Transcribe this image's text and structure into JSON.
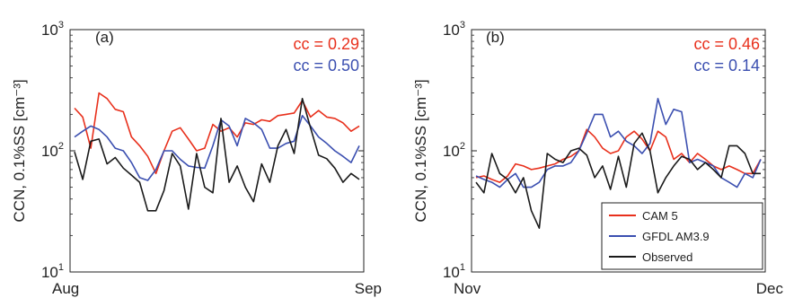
{
  "chart_data": [
    {
      "type": "line",
      "panel_label": "(a)",
      "ylabel": "CCN, 0.1%SS [cm⁻³]",
      "yscale": "log",
      "ylim": [
        10,
        1000
      ],
      "x_tick_labels": [
        "Aug",
        "Sep"
      ],
      "annotations": [
        "cc = 0.29",
        "cc = 0.50"
      ],
      "annotation_colors": [
        "#e8301c",
        "#3b4fb0"
      ],
      "series": [
        {
          "name": "CAM 5",
          "color": "#e8301c",
          "values": [
            225,
            190,
            105,
            300,
            270,
            220,
            210,
            130,
            110,
            90,
            65,
            100,
            145,
            155,
            125,
            100,
            105,
            165,
            145,
            155,
            130,
            170,
            165,
            180,
            175,
            195,
            200,
            205,
            260,
            190,
            215,
            190,
            185,
            170,
            145,
            160
          ]
        },
        {
          "name": "GFDL AM3.9",
          "color": "#3b4fb0",
          "values": [
            130,
            145,
            160,
            150,
            130,
            105,
            100,
            80,
            60,
            57,
            70,
            100,
            100,
            85,
            75,
            73,
            72,
            110,
            180,
            160,
            110,
            185,
            170,
            150,
            105,
            105,
            115,
            120,
            195,
            160,
            130,
            115,
            100,
            90,
            80,
            110
          ]
        },
        {
          "name": "Observed",
          "color": "#1a1a1a",
          "values": [
            98,
            58,
            120,
            125,
            78,
            88,
            72,
            63,
            55,
            32,
            32,
            47,
            95,
            75,
            33,
            95,
            50,
            45,
            185,
            55,
            75,
            50,
            38,
            78,
            55,
            110,
            150,
            95,
            270,
            155,
            92,
            86,
            72,
            55,
            65,
            58
          ]
        }
      ]
    },
    {
      "type": "line",
      "panel_label": "(b)",
      "ylabel": "CCN, 0.1%SS [cm⁻³]",
      "yscale": "log",
      "ylim": [
        10,
        1000
      ],
      "x_tick_labels": [
        "Nov",
        "Dec"
      ],
      "annotations": [
        "cc = 0.46",
        "cc = 0.14"
      ],
      "annotation_colors": [
        "#e8301c",
        "#3b4fb0"
      ],
      "legend": {
        "position": "bottom-right",
        "entries": [
          "CAM 5",
          "GFDL AM3.9",
          "Observed"
        ]
      },
      "series": [
        {
          "name": "CAM 5",
          "color": "#e8301c",
          "values": [
            60,
            62,
            58,
            55,
            62,
            78,
            75,
            70,
            72,
            75,
            78,
            85,
            90,
            100,
            150,
            130,
            105,
            95,
            100,
            130,
            145,
            125,
            100,
            145,
            130,
            85,
            95,
            80,
            95,
            85,
            75,
            70,
            75,
            70,
            65,
            65,
            85
          ]
        },
        {
          "name": "GFDL AM3.9",
          "color": "#3b4fb0",
          "values": [
            62,
            58,
            55,
            50,
            58,
            65,
            50,
            50,
            55,
            70,
            75,
            75,
            80,
            100,
            140,
            200,
            200,
            130,
            145,
            120,
            110,
            95,
            115,
            270,
            165,
            220,
            210,
            80,
            85,
            80,
            75,
            60,
            55,
            50,
            65,
            60,
            85
          ]
        },
        {
          "name": "Observed",
          "color": "#1a1a1a",
          "values": [
            55,
            45,
            95,
            65,
            58,
            45,
            60,
            32,
            23,
            95,
            85,
            80,
            100,
            105,
            92,
            60,
            75,
            48,
            90,
            50,
            115,
            140,
            100,
            45,
            60,
            75,
            90,
            85,
            70,
            80,
            70,
            60,
            110,
            110,
            95,
            65,
            65
          ]
        }
      ]
    }
  ]
}
